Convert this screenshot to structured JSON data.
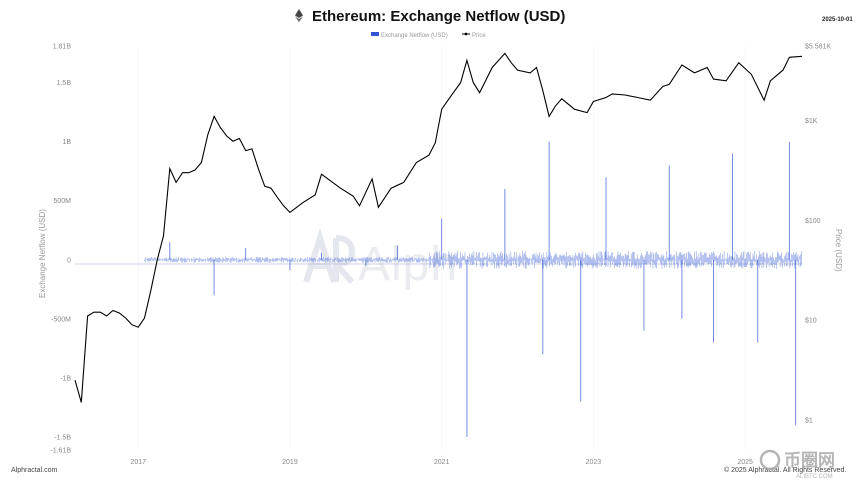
{
  "header": {
    "title": "Ethereum: Exchange Netflow (USD)",
    "date": "2025-10-01",
    "legend": [
      "Exchange Netflow (USD)",
      "Price"
    ]
  },
  "footer": {
    "source": "Alphractal.com",
    "copyright": "© 2025 Alphractal. All Rights Reserved.",
    "watermark": "Alph",
    "stamp_text": "币圈网",
    "stamp_url": "ALIBTC.COM"
  },
  "colors": {
    "netflow": "#2f55d4",
    "price": "#000000",
    "grid": "#eeeeee"
  },
  "chart_data": {
    "type": "bar+line",
    "x_ticks": [
      "2017",
      "2019",
      "2021",
      "2023",
      "2025"
    ],
    "left_axis": {
      "label": "Exchange Netflow (USD)",
      "ticks": [
        "1.81B",
        "1.5B",
        "1B",
        "500M",
        "0",
        "-500M",
        "-1B",
        "-1.5B",
        "-1.61B"
      ],
      "tick_values": [
        1810000000,
        1500000000,
        1000000000,
        500000000,
        0,
        -500000000,
        -1000000000,
        -1500000000,
        -1610000000
      ],
      "range": [
        -1610000000,
        1810000000
      ]
    },
    "right_axis": {
      "label": "Price (USD)",
      "scale": "log",
      "ticks": [
        "$5.581K",
        "$1K",
        "$100",
        "$10",
        "$1"
      ],
      "tick_values": [
        5581,
        1000,
        100,
        10,
        1
      ],
      "range": [
        0.5,
        5581
      ]
    },
    "series": [
      {
        "name": "Price",
        "kind": "line",
        "x": [
          "2016-03",
          "2016-04",
          "2016-05",
          "2016-06",
          "2016-07",
          "2016-08",
          "2016-09",
          "2016-10",
          "2016-11",
          "2016-12",
          "2017-01",
          "2017-02",
          "2017-03",
          "2017-04",
          "2017-05",
          "2017-06",
          "2017-07",
          "2017-08",
          "2017-09",
          "2017-10",
          "2017-11",
          "2017-12",
          "2018-01",
          "2018-02",
          "2018-03",
          "2018-04",
          "2018-05",
          "2018-06",
          "2018-07",
          "2018-08",
          "2018-09",
          "2018-10",
          "2018-11",
          "2018-12",
          "2019-01",
          "2019-03",
          "2019-05",
          "2019-06",
          "2019-07",
          "2019-09",
          "2019-11",
          "2019-12",
          "2020-02",
          "2020-03",
          "2020-05",
          "2020-07",
          "2020-09",
          "2020-11",
          "2020-12",
          "2021-01",
          "2021-02",
          "2021-04",
          "2021-05",
          "2021-06",
          "2021-07",
          "2021-09",
          "2021-11",
          "2021-12",
          "2022-01",
          "2022-03",
          "2022-04",
          "2022-05",
          "2022-06",
          "2022-07",
          "2022-08",
          "2022-10",
          "2022-12",
          "2023-01",
          "2023-03",
          "2023-04",
          "2023-06",
          "2023-08",
          "2023-10",
          "2023-12",
          "2024-01",
          "2024-03",
          "2024-05",
          "2024-07",
          "2024-08",
          "2024-10",
          "2024-12",
          "2025-02",
          "2025-04",
          "2025-05",
          "2025-07",
          "2025-08",
          "2025-10"
        ],
        "values": [
          2.5,
          1.5,
          11,
          12,
          12,
          11,
          12.5,
          11.8,
          10.5,
          9,
          8.5,
          10.5,
          20,
          40,
          70,
          330,
          240,
          300,
          300,
          320,
          380,
          720,
          1100,
          850,
          700,
          620,
          660,
          500,
          520,
          330,
          220,
          210,
          170,
          140,
          120,
          150,
          180,
          290,
          260,
          210,
          175,
          140,
          260,
          135,
          210,
          240,
          380,
          450,
          600,
          1300,
          1600,
          2400,
          4000,
          2400,
          1900,
          3400,
          4700,
          3800,
          3200,
          3000,
          3400,
          2000,
          1100,
          1400,
          1650,
          1300,
          1200,
          1550,
          1700,
          1850,
          1800,
          1700,
          1600,
          2200,
          2300,
          3600,
          3000,
          3400,
          2600,
          2500,
          3800,
          2900,
          1600,
          2500,
          3200,
          4300,
          4400
        ]
      },
      {
        "name": "Exchange Netflow (USD)",
        "kind": "bar",
        "x": [
          "2017-06",
          "2018-01",
          "2018-06",
          "2019-01",
          "2019-06",
          "2020-01",
          "2020-06",
          "2021-01",
          "2021-05",
          "2021-11",
          "2022-05",
          "2022-06",
          "2022-11",
          "2023-03",
          "2023-09",
          "2024-01",
          "2024-03",
          "2024-08",
          "2024-11",
          "2025-03",
          "2025-08",
          "2025-09"
        ],
        "values": [
          150000000,
          -300000000,
          100000000,
          -90000000,
          60000000,
          -50000000,
          120000000,
          350000000,
          -1500000000,
          600000000,
          -800000000,
          1000000000,
          -1200000000,
          700000000,
          -600000000,
          800000000,
          -500000000,
          -700000000,
          900000000,
          -700000000,
          1000000000,
          -1400000000
        ]
      }
    ]
  }
}
